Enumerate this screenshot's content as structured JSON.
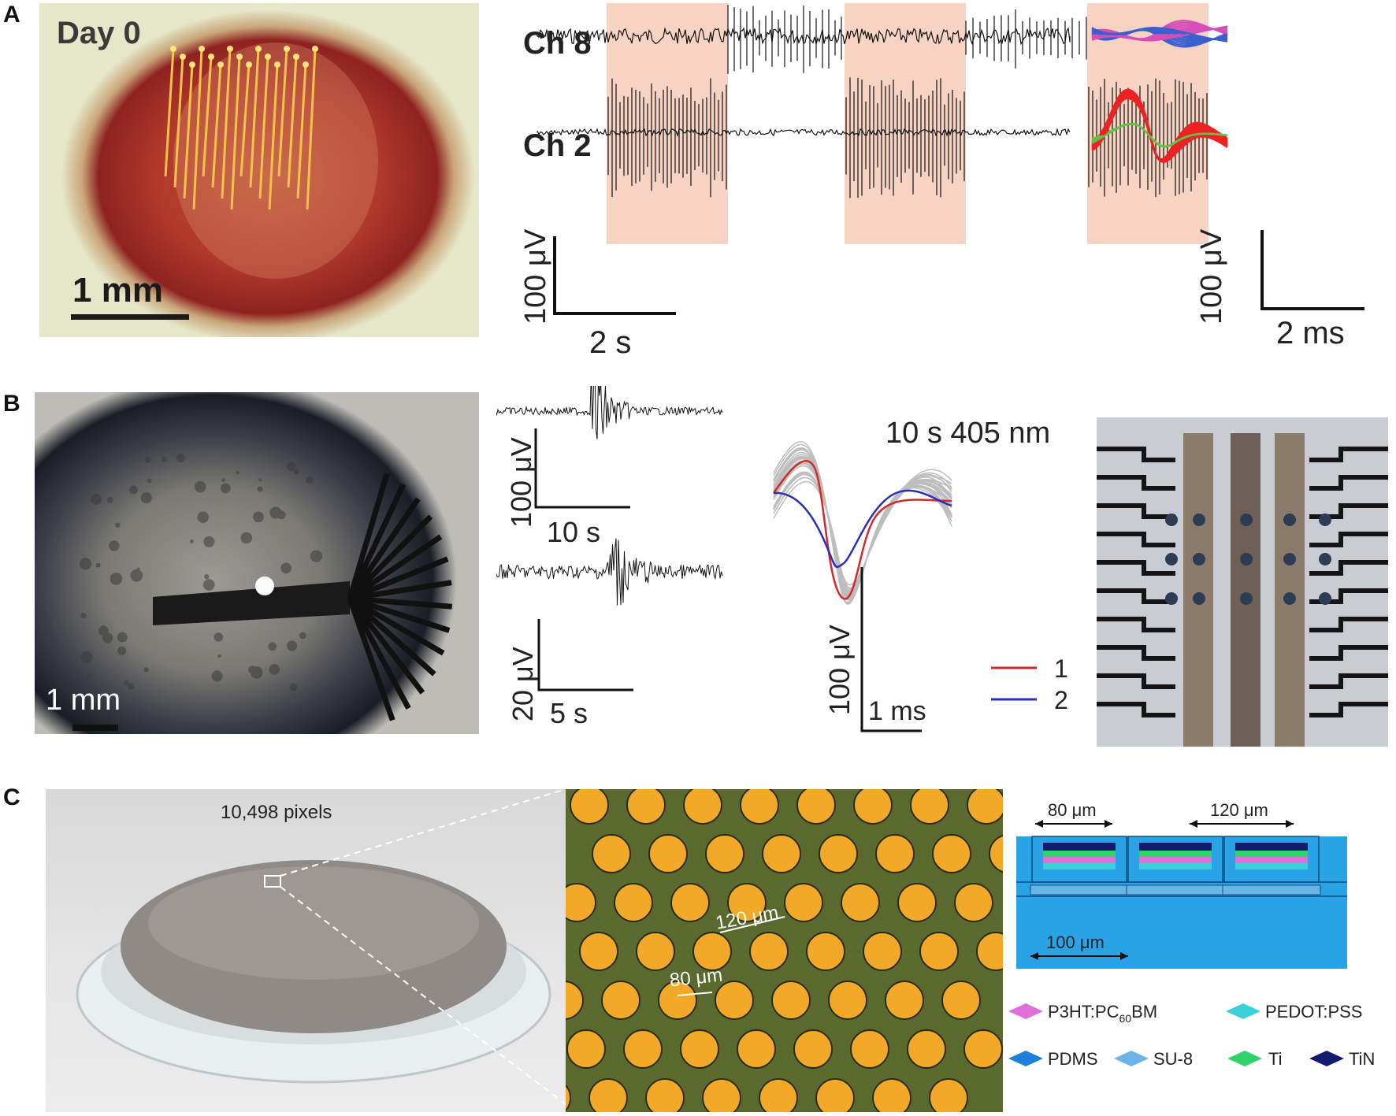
{
  "panels": [
    {
      "letter": "A"
    },
    {
      "letter": "B"
    },
    {
      "letter": "C"
    }
  ],
  "panelA": {
    "photo_label": "Day 0",
    "photo_scale": "1 mm",
    "channels": [
      "Ch 8",
      "Ch 2"
    ],
    "trace_scale_v": "100 μV",
    "trace_scale_t": "2 s",
    "wave_scale_v": "100 μV",
    "wave_scale_t": "2 ms",
    "colors": {
      "stim": "#f7d3c4",
      "unit_blue": "#3a5fcf",
      "unit_magenta": "#d64fb8",
      "unit_red": "#ee2222",
      "unit_green": "#62c24a"
    }
  },
  "panelB": {
    "photo_scale": "1 mm",
    "trace1_scale_v": "100 μV",
    "trace1_scale_t": "10 s",
    "trace2_scale_v": "20 μV",
    "trace2_scale_t": "5 s",
    "wave_title": "10 s 405 nm",
    "wave_scale_v": "100 μV",
    "wave_scale_t": "1 ms",
    "legend": [
      {
        "label": "1",
        "color": "#d62828"
      },
      {
        "label": "2",
        "color": "#2a2fb8"
      }
    ]
  },
  "panelC": {
    "photo_label": "10,498 pixels",
    "micro_label_pitch": "120 μm",
    "micro_label_diam": "80 μm",
    "schem_label_width": "80 μm",
    "schem_label_pitch": "120 μm",
    "schem_label_base": "100 μm",
    "legend": [
      {
        "label": "P3HT:PC",
        "sub": "60",
        "suffix": "BM",
        "color": "#e070d8"
      },
      {
        "label": "PEDOT:PSS",
        "sub": "",
        "suffix": "",
        "color": "#3ad0d8"
      },
      {
        "label": "PDMS",
        "sub": "",
        "suffix": "",
        "color": "#1c7fd8"
      },
      {
        "label": "SU-8",
        "sub": "",
        "suffix": "",
        "color": "#6cb4e8"
      },
      {
        "label": "Ti",
        "sub": "",
        "suffix": "",
        "color": "#2ed36a"
      },
      {
        "label": "TiN",
        "sub": "",
        "suffix": "",
        "color": "#141a6e"
      }
    ]
  }
}
